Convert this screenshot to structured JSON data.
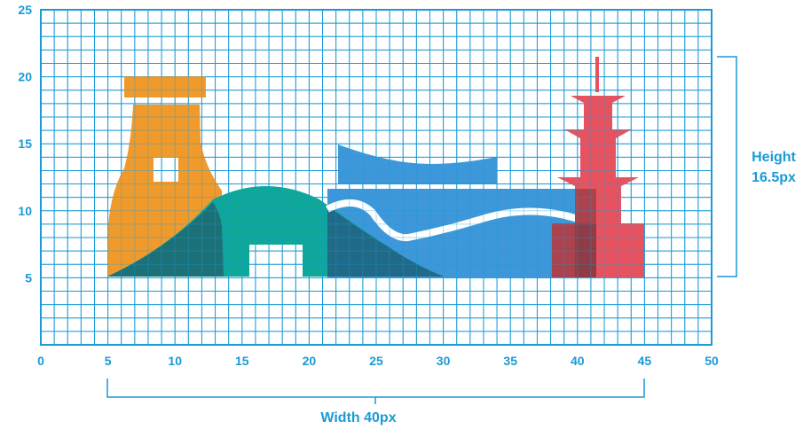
{
  "colors": {
    "grid": "#1a9ad6",
    "label": "#1a9ad6",
    "orange": "#f09a2b",
    "teal": "#0fa79a",
    "blue": "#3d97d9",
    "red": "#e7525f",
    "dark_overlap": "#1e6b74"
  },
  "x_ticks": [
    "0",
    "5",
    "10",
    "15",
    "20",
    "25",
    "30",
    "35",
    "40",
    "45",
    "50"
  ],
  "y_ticks": [
    "5",
    "10",
    "15",
    "20",
    "25"
  ],
  "width_label": "Width 40px",
  "height_label_line1": "Height",
  "height_label_line2": "16.5px"
}
